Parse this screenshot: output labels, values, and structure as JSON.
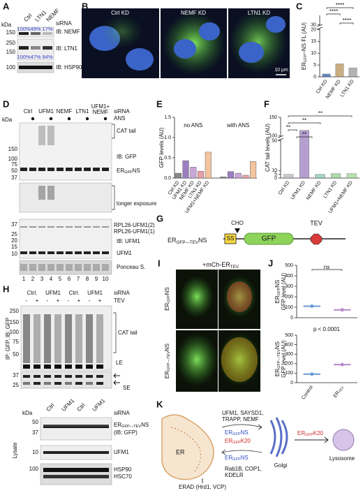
{
  "A": {
    "label": "A",
    "lanes": [
      "Ctrl",
      "LTN1",
      "NEMF"
    ],
    "siRNA": "siRNA",
    "kda": "kDa",
    "markers": [
      "150",
      "250",
      "150",
      "100"
    ],
    "nemf_pct": [
      "100%",
      "49%",
      "17%"
    ],
    "ltn1_pct": [
      "100%",
      "47%",
      "94%"
    ],
    "blots": [
      "IB: NEMF",
      "IB: LTN1",
      "IB: HSP90"
    ]
  },
  "B": {
    "label": "B",
    "images": [
      "Ctrl KD",
      "NEMF KD",
      "LTN1 KD"
    ],
    "scale": "10 μm"
  },
  "D": {
    "label": "D",
    "lanes": [
      "Ctrl",
      "UFM1",
      "NEMF",
      "LTN1",
      "UFM1+",
      "NEMF"
    ],
    "siRNA": "siRNA",
    "ANS": "ANS",
    "kda": "kDa",
    "markers_gfp": [
      "150",
      "100",
      "75",
      "50",
      "37"
    ],
    "markers_ufm1": [
      "37",
      "25",
      "20",
      "15",
      "10"
    ],
    "cat_tail": "CAT tail",
    "ib_gfp": "IB: GFP",
    "product": [
      "ER",
      "GFP",
      "NS"
    ],
    "longer": "longer exposure",
    "rpl2": "RPL26-UFM1(2)",
    "rpl1": "RPL26-UFM1(1)",
    "ib_ufm1": "IB: UFM1",
    "ufm1": "UFM1",
    "ponceau": "Ponceau S.",
    "lane_numbers": [
      "1",
      "2",
      "3",
      "4",
      "5",
      "6",
      "7",
      "8",
      "9",
      "10"
    ]
  },
  "G": {
    "label": "G",
    "construct": [
      "ER",
      "GFP—TEV",
      "NS"
    ],
    "cho": "CHO",
    "ss": "SS",
    "gfp": "GFP",
    "tev": "TEV"
  },
  "H": {
    "label": "H",
    "lanes": [
      "Ctrl.",
      "UFM1",
      "Ctrl.",
      "UFM1"
    ],
    "siRNA": "siRNA",
    "tev_row": [
      "-",
      "+",
      "-",
      "+",
      "-",
      "+",
      "-",
      "+"
    ],
    "tev": "TEV",
    "ip": "IP: GFP, IB: GFP",
    "markers": [
      "250",
      "150",
      "100",
      "75",
      "50"
    ],
    "cat_tail": "CAT tail",
    "le": "LE",
    "se_markers": [
      "37",
      "25"
    ],
    "se": "SE",
    "lysate_lanes": [
      "Ctrl",
      "UFM1",
      "Ctrl",
      "UFM1"
    ],
    "lysate_siRNA": "siRNA",
    "kda": "kDa",
    "lysate_markers": [
      "50",
      "37",
      "10",
      "100"
    ],
    "lys_product": [
      "ER",
      "GFP—TEV",
      "NS"
    ],
    "ib_gfp": "(IB: GFP)",
    "ufm1": "UFM1",
    "hsp": [
      "HSP90",
      "HSC70"
    ],
    "lysate": "Lysate"
  },
  "I": {
    "label": "I",
    "title": [
      "+mCh-ER",
      "TEV"
    ],
    "rows": [
      [
        "ER",
        "GFP",
        "NS"
      ],
      [
        "ER",
        "GFP—TEV",
        "NS"
      ]
    ]
  },
  "J": {
    "label": "J"
  },
  "C": {
    "label": "C"
  },
  "E": {
    "label": "E"
  },
  "F": {
    "label": "F"
  },
  "K": {
    "label": "K",
    "factors": [
      "UFM1, SAYSD1,",
      "TRAPP, NEMF"
    ],
    "cargo_top": [
      [
        "ER",
        "GFP",
        "NS"
      ],
      [
        "ER",
        "GFP",
        "K20"
      ]
    ],
    "cargo_bottom": [
      "ER",
      "GFP",
      "NS"
    ],
    "retrieval": [
      "Rab1B, COP1,",
      "KDELR"
    ],
    "er": "ER",
    "erad": "ERAD (Hrd1, VCP)",
    "golgi": "Golgi",
    "lysosome_cargo": [
      "ER",
      "GFP",
      "K20"
    ],
    "lysosome": "Lysosome"
  },
  "chart_data": [
    {
      "type": "bar",
      "ylabel": [
        "ER",
        "GFP",
        "–NS FL (AU)"
      ],
      "categories": [
        "Ctrl KD",
        "NEMF KD",
        "LTN1 KD"
      ],
      "colors": [
        "#2f5fb3",
        "#b8945a",
        "#9a9a9a"
      ],
      "values": [
        1.2,
        5.5,
        3.8
      ],
      "ylim": [
        0,
        35
      ],
      "yticks": [
        0,
        5,
        10,
        15,
        20,
        30
      ],
      "axis_break": true,
      "annotations": [
        "****",
        "****",
        "****"
      ]
    },
    {
      "type": "grouped_bar",
      "ylabel": "GFP levels (AU)",
      "categories": [
        "Ctrl KD",
        "UFM1 KD",
        "NEMF KD",
        "LTN1 KD",
        "UFM1+NEMF KD"
      ],
      "colors": [
        "#8a8a8a",
        "#9b7fc0",
        "#c9a6d8",
        "#e8a0a8",
        "#f2c4a0"
      ],
      "series": [
        {
          "name": "no ANS",
          "values": [
            0.12,
            0.43,
            0.27,
            0.17,
            0.64
          ]
        },
        {
          "name": "with ANS",
          "values": [
            0.03,
            0.16,
            0.12,
            0.07,
            0.41
          ]
        }
      ],
      "ylim": [
        0,
        1.5
      ],
      "yticks": [
        {
          "value": 0,
          "label": "0.0"
        },
        {
          "value": 0.5,
          "label": "0.5"
        },
        {
          "value": 1,
          "label": "1.0"
        },
        {
          "value": 1.5,
          "label": "1.5"
        }
      ]
    },
    {
      "type": "bar",
      "ylabel": "CAT tail levels (AU)",
      "categories": [
        "Ctrl KD",
        "UFM1 KD",
        "NEMF KD",
        "LTN1 KD",
        "UFM1+NEMF KD"
      ],
      "colors": [
        "#b8b8c8",
        "#9b7fc0",
        "#7fc8b0",
        "#90d090",
        "#a0d890"
      ],
      "values": [
        5,
        115,
        5,
        6,
        6
      ],
      "ylim": [
        0,
        150
      ],
      "yticks": [
        0,
        5,
        10,
        50,
        100,
        150
      ],
      "axis_break": true,
      "annotations": [
        "**",
        "**",
        "**",
        "**"
      ]
    },
    {
      "type": "box",
      "ylabel": [
        "ER",
        "GFP",
        "NS"
      ],
      "ylabel2": "GFP level (AU)",
      "colors": [
        "#6a9ad0",
        "#b58acb"
      ],
      "values": [
        110,
        75
      ],
      "ylim": [
        0,
        500
      ],
      "yticks": [
        0,
        100,
        200,
        300,
        400,
        500
      ],
      "annotations": [
        "ns"
      ]
    },
    {
      "type": "box",
      "ylabel": [
        "ER",
        "GFP—TEV",
        "NS"
      ],
      "ylabel2": "GFP level (AU)",
      "categories": [
        "Control",
        [
          "ER",
          "TEV"
        ]
      ],
      "colors": [
        "#6a9ad0",
        "#b58acb"
      ],
      "values": [
        90,
        190
      ],
      "ylim": [
        0,
        500
      ],
      "yticks": [
        0,
        100,
        200,
        300,
        400,
        500
      ],
      "annotations": [
        "p < 0.0001"
      ]
    }
  ]
}
